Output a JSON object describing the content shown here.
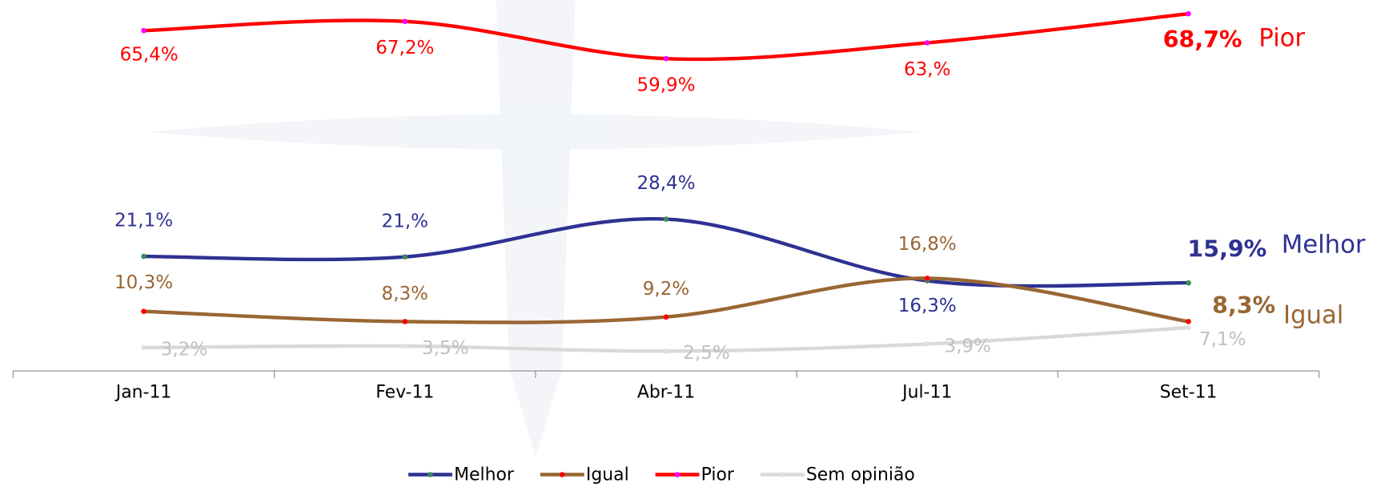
{
  "chart_data": {
    "type": "line",
    "categories": [
      "Jan-11",
      "Fev-11",
      "Abr-11",
      "Jul-11",
      "Set-11"
    ],
    "ylim": [
      0,
      70
    ],
    "legend": "bottom",
    "series": [
      {
        "name": "Melhor",
        "color": "#2e3192",
        "values": [
          21.1,
          21.0,
          28.4,
          16.3,
          15.9
        ],
        "value_labels": [
          "21,1%",
          "21,%",
          "28,4%",
          "16,3%",
          "15,9%"
        ]
      },
      {
        "name": "Igual",
        "color": "#996633",
        "values": [
          10.3,
          8.3,
          9.2,
          16.8,
          8.3
        ],
        "value_labels": [
          "10,3%",
          "8,3%",
          "9,2%",
          "16,8%",
          "8,3%"
        ]
      },
      {
        "name": "Pior",
        "color": "#ff0000",
        "values": [
          65.4,
          67.2,
          59.9,
          63.0,
          68.7
        ],
        "value_labels": [
          "65,4%",
          "67,2%",
          "59,9%",
          "63,%",
          "68,7%"
        ]
      },
      {
        "name": "Sem opinião",
        "color": "#d9d9d9",
        "values": [
          3.2,
          3.5,
          2.5,
          3.9,
          7.1
        ],
        "value_labels": [
          "3,2%",
          "3,5%",
          "2,5%",
          "3,9%",
          "7,1%"
        ]
      }
    ]
  }
}
